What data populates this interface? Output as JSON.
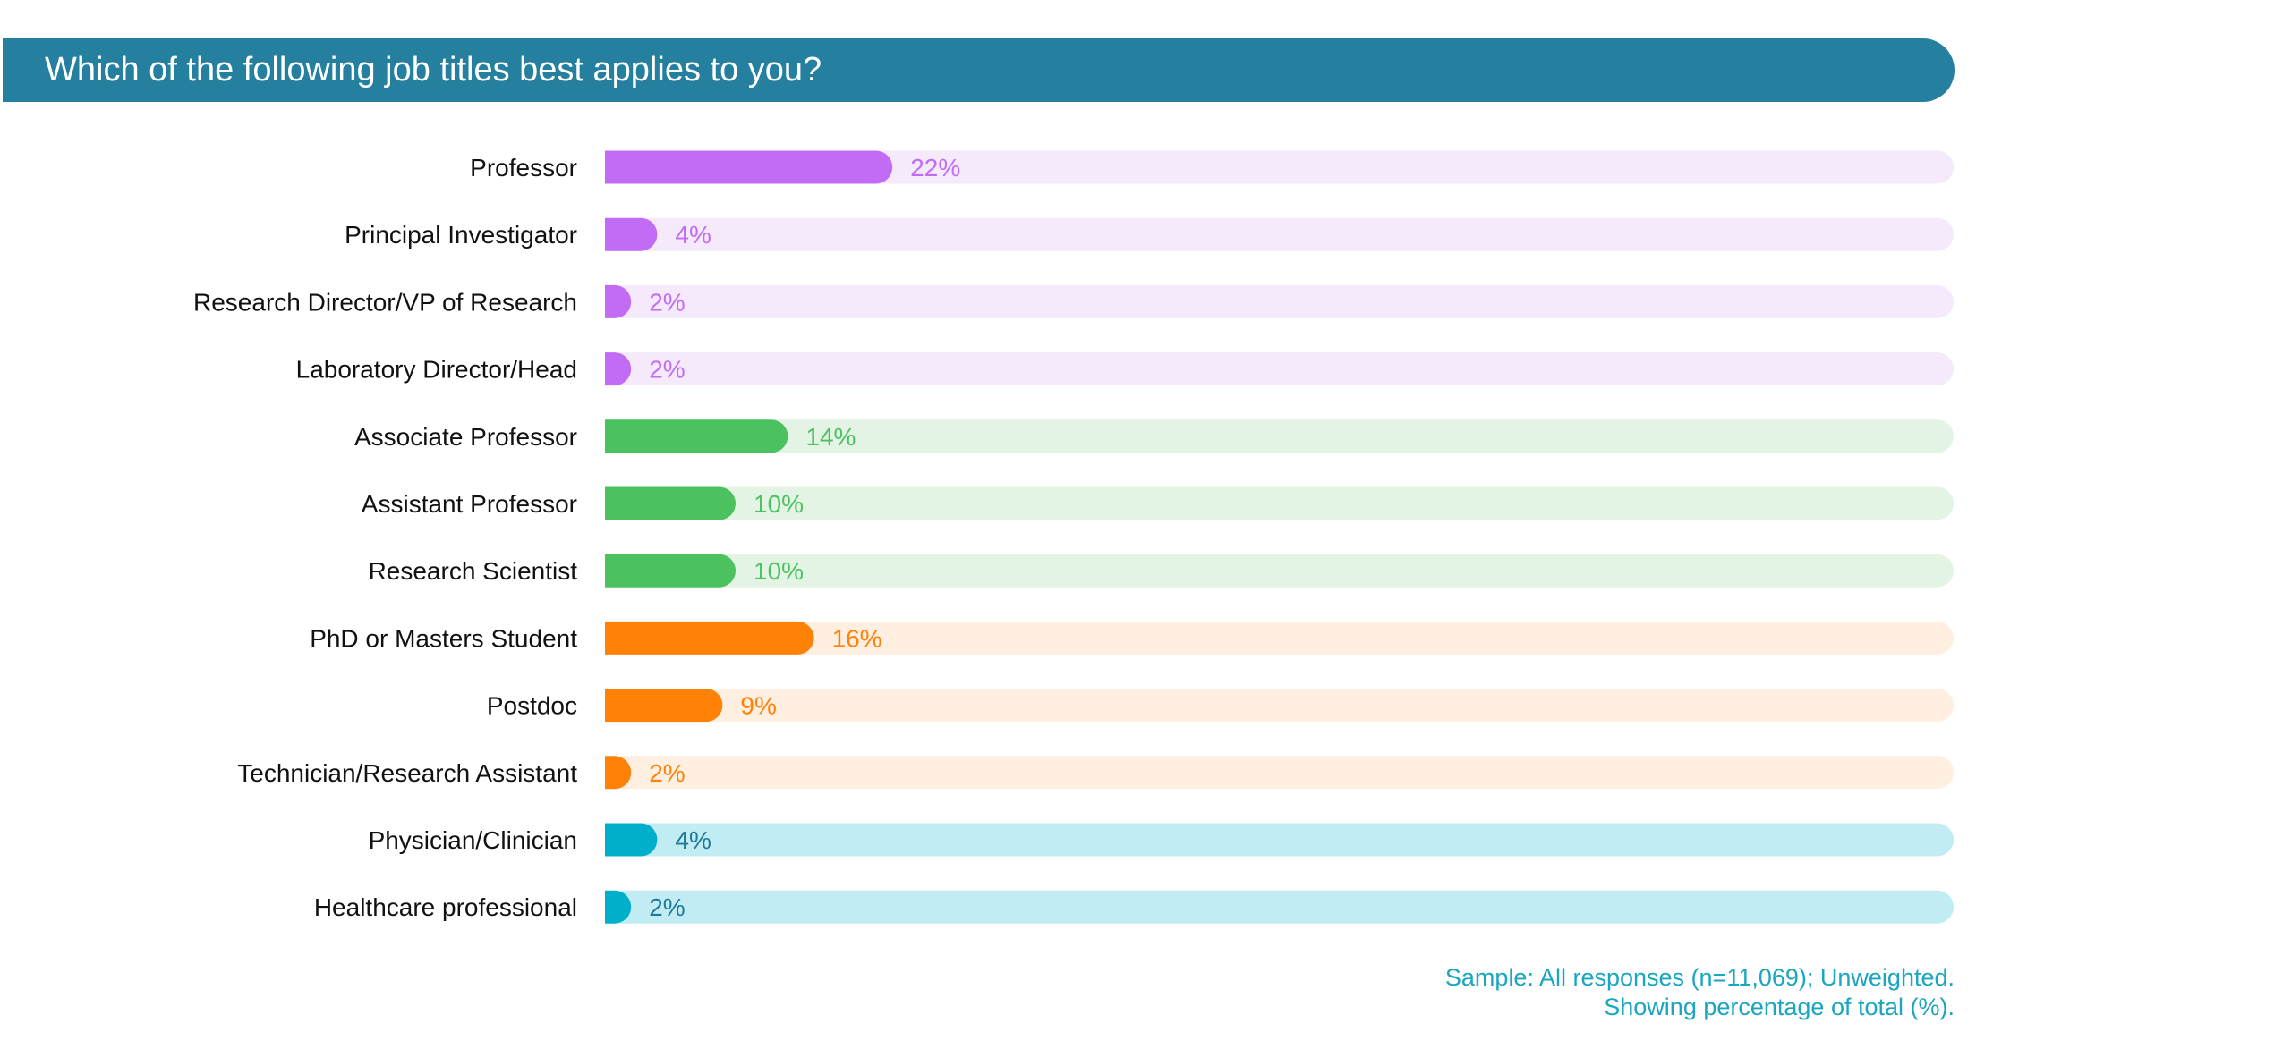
{
  "title": "Which of the following job titles best applies to you?",
  "colors": {
    "banner": "#257F9F",
    "label_text": "#111111",
    "footnote": "#1AA6BF"
  },
  "chart_data": {
    "type": "bar",
    "orientation": "horizontal",
    "title": "Which of the following job titles best applies to you?",
    "unit": "%",
    "xlim": [
      0,
      100
    ],
    "categories": [
      "Professor",
      "Principal Investigator",
      "Research Director/VP of Research",
      "Laboratory Director/Head",
      "Associate Professor",
      "Assistant Professor",
      "Research Scientist",
      "PhD or Masters Student",
      "Postdoc",
      "Technician/Research Assistant",
      "Physician/Clinician",
      "Healthcare professional"
    ],
    "values": [
      22,
      4,
      2,
      2,
      14,
      10,
      10,
      16,
      9,
      2,
      4,
      2
    ],
    "labels": [
      "22%",
      "4%",
      "2%",
      "2%",
      "14%",
      "10%",
      "10%",
      "16%",
      "9%",
      "2%",
      "4%",
      "2%"
    ],
    "groups": [
      0,
      0,
      0,
      0,
      1,
      1,
      1,
      2,
      2,
      2,
      3,
      3
    ],
    "group_colors": [
      {
        "bar": "#C26BF5",
        "track": "#F4EAFC",
        "label": "#C26BF5"
      },
      {
        "bar": "#4CC15F",
        "track": "#E3F4E5",
        "label": "#4CC15F"
      },
      {
        "bar": "#FF8207",
        "track": "#FEEFE1",
        "label": "#FF8207"
      },
      {
        "bar": "#00B0CB",
        "track": "#C2ECF3",
        "label": "#1E7A99"
      }
    ]
  },
  "footnote": {
    "line1": "Sample: All responses (n=11,069); Unweighted.",
    "line2": "Showing percentage of total (%)."
  }
}
